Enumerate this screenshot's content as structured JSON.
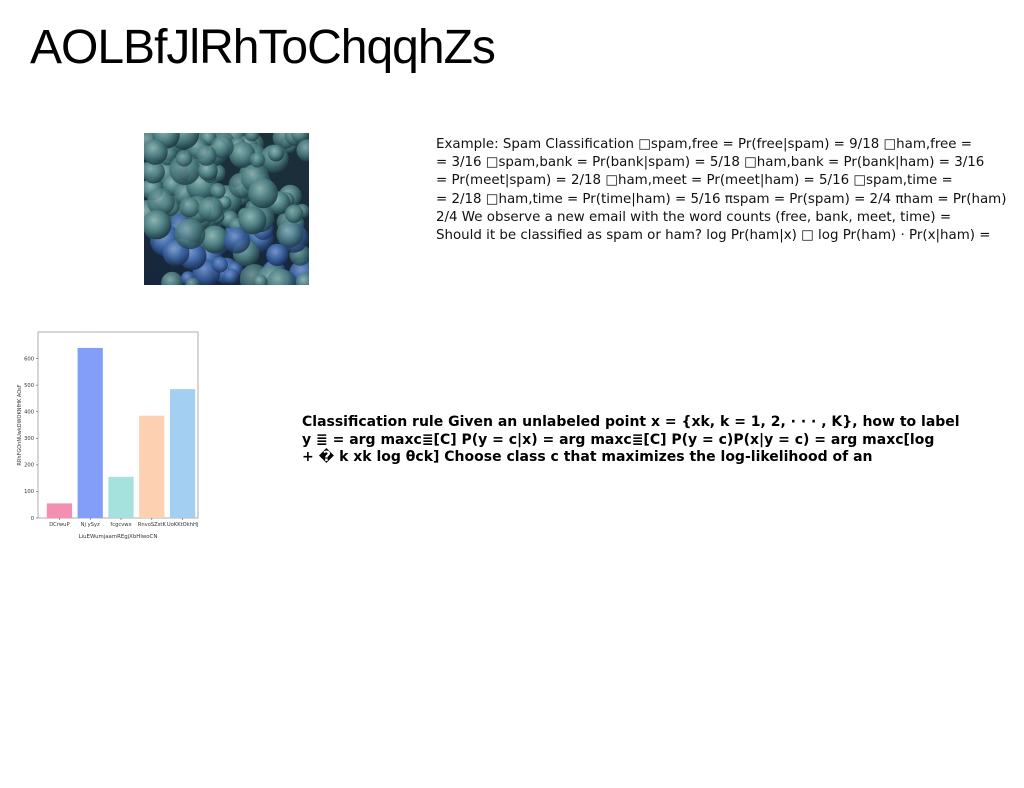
{
  "page": {
    "title": "AOLBfJlRhToChqqhZs"
  },
  "photo": {
    "subject": "aerial view of dense forest canopy"
  },
  "text_block_1": {
    "lines": [
      "Example: Spam Classification □spam,free = Pr(free|spam) = 9/18 □ham,free =",
      "= 3/16 □spam,bank = Pr(bank|spam) = 5/18 □ham,bank = Pr(bank|ham) = 3/16",
      "= Pr(meet|spam) = 2/18 □ham,meet = Pr(meet|ham) = 5/16 □spam,time =",
      "= 2/18 □ham,time = Pr(time|ham) = 5/16 πspam = Pr(spam) = 2/4 πham = Pr(ham)",
      "2/4 We observe a new email with the word counts (free, bank, meet, time) =",
      "Should it be classified as spam or ham? log Pr(ham|x) □ log Pr(ham) · Pr(x|ham) ="
    ]
  },
  "text_block_2": {
    "lines": [
      "Classification rule Given an unlabeled point x = {xk, k = 1, 2, · · · , K}, how to label",
      "y ≣ = arg maxc≣[C] P(y = c|x) = arg maxc≣[C] P(y = c)P(x|y = c) = arg maxc[log",
      "+ � k xk log θck] Choose class c that maximizes the log-likelihood of an"
    ]
  },
  "chart_data": {
    "type": "bar",
    "categories": [
      "DCrwuP",
      "Nj ySyz",
      "fcgcvwx",
      "RnvoSZstK",
      "UoKKtOkhHj"
    ],
    "values": [
      55,
      640,
      155,
      385,
      485
    ],
    "colors": [
      "#f48fb1",
      "#829ef8",
      "#a6e2dd",
      "#fdd0b1",
      "#a3cff3"
    ],
    "xlabel": "LiuEWumjaamREgjXbHlwoCN",
    "ylabel": "RRhFGOnNUwkDWOKNfHK AOsF",
    "ylim": [
      0,
      700
    ],
    "yticks": [
      0,
      100,
      200,
      300,
      400,
      500,
      600
    ],
    "grid": false,
    "legend": "none"
  }
}
